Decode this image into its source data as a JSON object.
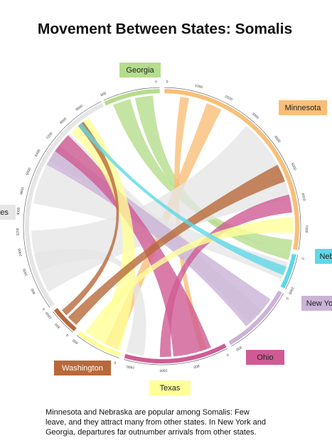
{
  "title": "Movement Between States: Somalis",
  "caption": [
    "Minnesota and Nebraska are popular among Somalis: Few",
    "leave, and they attract many from other states. In New York and",
    "Georgia, departures far outnumber arrivals from other states."
  ],
  "nodes": [
    {
      "label": "Georgia",
      "color": "#b5dd8c",
      "ticks": [
        "800",
        "0"
      ]
    },
    {
      "label": "Minnesota",
      "color": "#f9bf78",
      "ticks": [
        "0",
        "1000",
        "2000",
        "3000",
        "4000",
        "5000",
        "6000",
        "7000"
      ]
    },
    {
      "label": "Nebraska",
      "color": "#5fd8e8",
      "ticks": [
        "0",
        "1000"
      ]
    },
    {
      "label": "New York",
      "color": "#cbb3d6",
      "ticks": [
        "0",
        "800"
      ]
    },
    {
      "label": "Ohio",
      "color": "#d05b94",
      "ticks": [
        "0",
        "800",
        "1600",
        "2400"
      ]
    },
    {
      "label": "Texas",
      "color": "#ffff99",
      "ticks": [
        "0",
        "800"
      ]
    },
    {
      "label": "Washington",
      "color": "#b8693a",
      "ticks": [
        "0",
        "800",
        "1600"
      ]
    },
    {
      "label": "Other States",
      "color": "#e6e6e6",
      "ticks": [
        "0",
        "800",
        "1600",
        "2400",
        "3200",
        "4000",
        "4800",
        "5600",
        "6400",
        "7200",
        "8000",
        "8800"
      ]
    }
  ]
}
